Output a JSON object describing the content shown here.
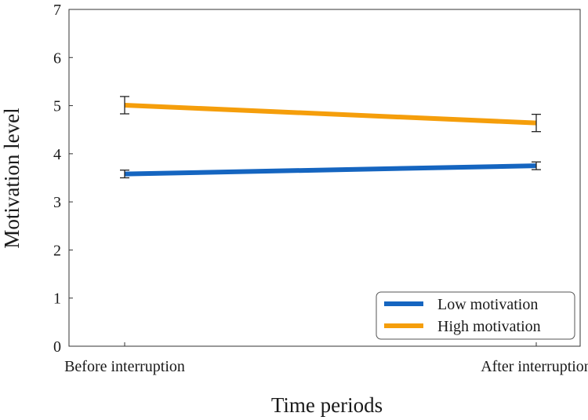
{
  "chart_data": {
    "type": "line",
    "title": "",
    "xlabel": "Time periods",
    "ylabel": "Motivation level",
    "categories": [
      "Before interruption",
      "After interruption"
    ],
    "ylim": [
      0,
      7
    ],
    "yticks": [
      0,
      1,
      2,
      3,
      4,
      5,
      6,
      7
    ],
    "grid": false,
    "legend_position": "bottom-right",
    "series": [
      {
        "name": "Low motivation",
        "color": "#1565C0",
        "values": [
          3.58,
          3.75
        ],
        "errors": [
          0.08,
          0.08
        ]
      },
      {
        "name": "High motivation",
        "color": "#F59E0B",
        "values": [
          5.01,
          4.64
        ],
        "errors": [
          0.18,
          0.18
        ]
      }
    ]
  }
}
